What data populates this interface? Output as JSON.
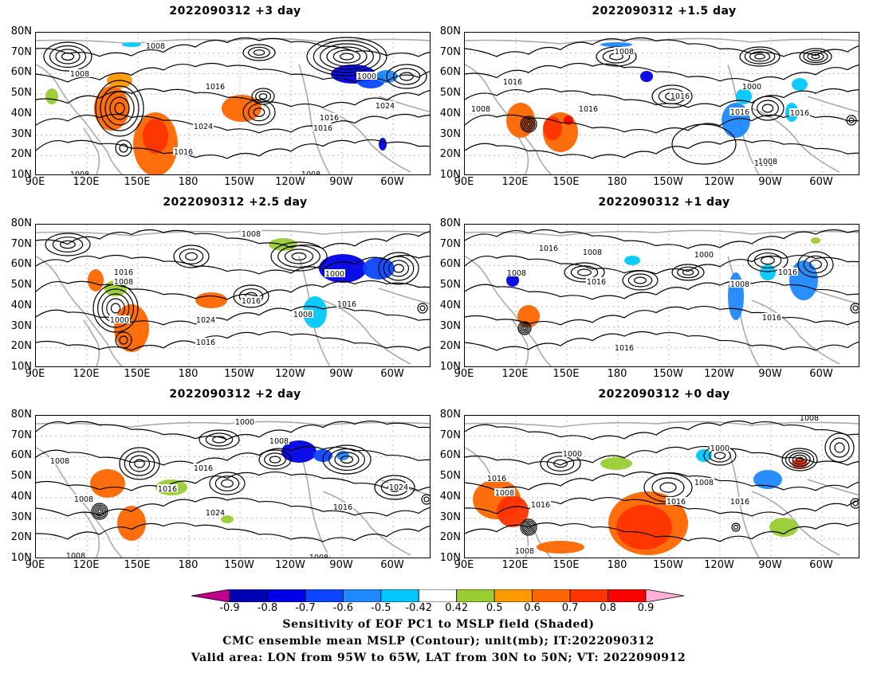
{
  "panels": [
    {
      "title": "2022090312  +3 day",
      "contour_labels": [
        "1008",
        "1008",
        "1016",
        "1024",
        "1016",
        "1000",
        "1024",
        "1016",
        "1016",
        "1008",
        "1008"
      ]
    },
    {
      "title": "2022090312  +1.5 day",
      "contour_labels": [
        "1008",
        "1016",
        "1008",
        "1016",
        "1016",
        "1016",
        "1000",
        "1008",
        "1016",
        "1008"
      ]
    },
    {
      "title": "2022090312  +2.5 day",
      "contour_labels": [
        "1008",
        "1016",
        "1008",
        "1000",
        "1016",
        "1024",
        "1016",
        "1016",
        "1000",
        "1008",
        "1016"
      ]
    },
    {
      "title": "2022090312  +1 day",
      "contour_labels": [
        "1016",
        "1008",
        "1000",
        "1008",
        "1016",
        "1008",
        "1016",
        "1016",
        "1016"
      ]
    },
    {
      "title": "2022090312  +2 day",
      "contour_labels": [
        "1000",
        "1008",
        "1008",
        "1016",
        "1016",
        "1008",
        "1024",
        "1016",
        "1024",
        "1008",
        "1008"
      ]
    },
    {
      "title": "2022090312  +0 day",
      "contour_labels": [
        "1008",
        "1000",
        "1000",
        "1016",
        "1008",
        "1016",
        "1008",
        "1016",
        "1008",
        "1016"
      ]
    }
  ],
  "lat_ticks": [
    "80N",
    "70N",
    "60N",
    "50N",
    "40N",
    "30N",
    "20N",
    "10N"
  ],
  "lon_ticks": [
    "90E",
    "120E",
    "150E",
    "180",
    "150W",
    "120W",
    "90W",
    "60W"
  ],
  "colorbar": {
    "labels": [
      "-0.9",
      "-0.8",
      "-0.7",
      "-0.6",
      "-0.5",
      "-0.42",
      "0.42",
      "0.5",
      "0.6",
      "0.7",
      "0.8",
      "0.9"
    ],
    "colors": [
      "#c0008c",
      "#0000b4",
      "#0000e6",
      "#0a46ff",
      "#1e88ff",
      "#00c8ff",
      "#ffffff",
      "#9acd32",
      "#ff9900",
      "#ff6600",
      "#ff3300",
      "#ff0000",
      "#ffb0d6"
    ]
  },
  "caption": {
    "line1": "Sensitivity of EOF PC1 to MSLP field (Shaded)",
    "line2": "CMC ensemble mean MSLP (Contour); unit(mb); IT:2022090312",
    "line3": "Valid area: LON from 95W to 65W, LAT from 30N to 50N; VT: 2022090912"
  }
}
